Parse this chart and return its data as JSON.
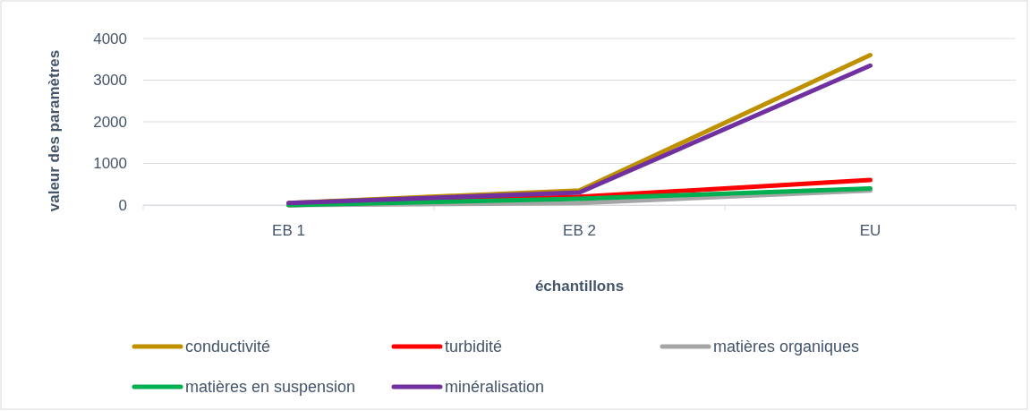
{
  "chart_data": {
    "type": "line",
    "xlabel": "échantillons",
    "ylabel": "valeur des paramètres",
    "categories": [
      "EB 1",
      "EB 2",
      "EU"
    ],
    "ylim": [
      0,
      4000
    ],
    "yticks": [
      0,
      1000,
      2000,
      3000,
      4000
    ],
    "grid": "y",
    "legend": "bottom",
    "marker": "none",
    "line_style": "solid",
    "series": [
      {
        "name": "conductivité",
        "color": "#bf9000",
        "values": [
          50,
          350,
          3600
        ]
      },
      {
        "name": "turbidité",
        "color": "#ff0000",
        "values": [
          0,
          200,
          600
        ]
      },
      {
        "name": "matières organiques",
        "color": "#a5a5a5",
        "values": [
          0,
          50,
          350
        ]
      },
      {
        "name": "matières en suspension",
        "color": "#00b050",
        "values": [
          0,
          150,
          400
        ]
      },
      {
        "name": "minéralisation",
        "color": "#7030a0",
        "values": [
          50,
          300,
          3350
        ]
      }
    ]
  }
}
